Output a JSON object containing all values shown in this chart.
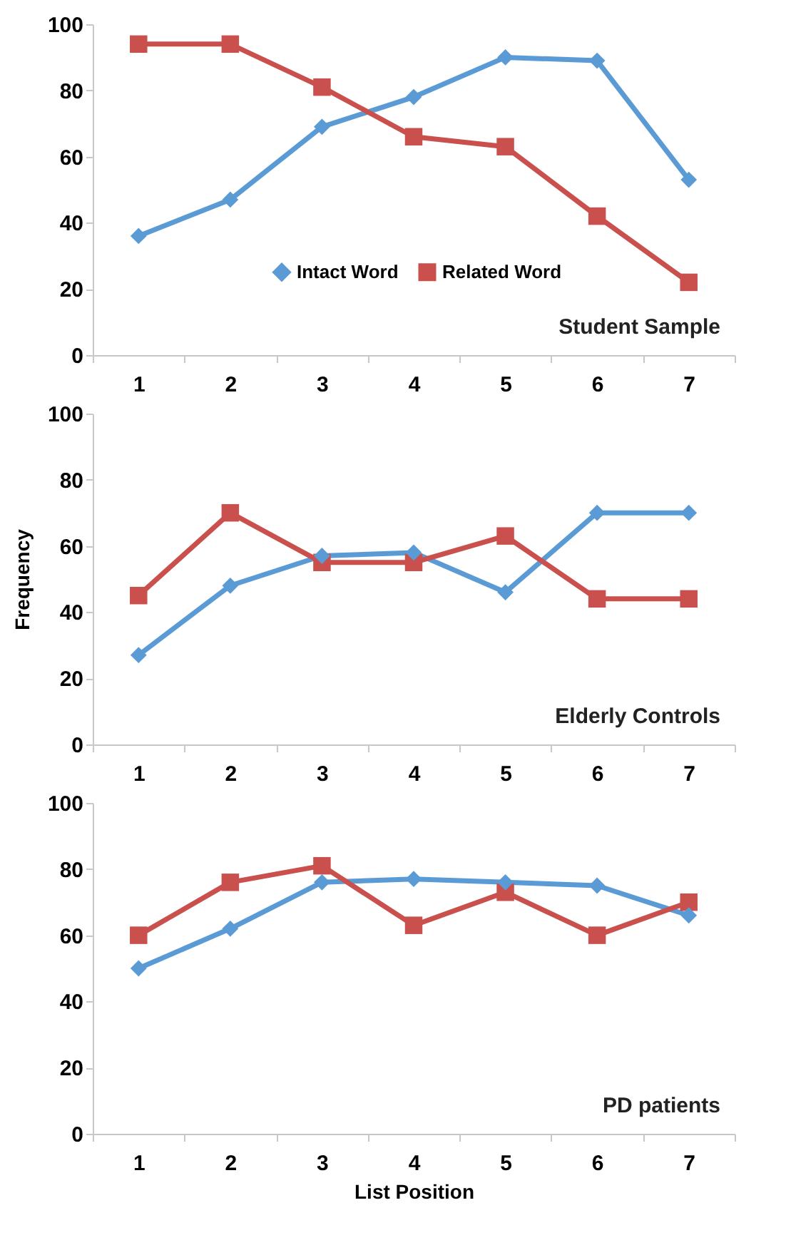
{
  "chart_data": [
    {
      "type": "line",
      "categories": [
        "1",
        "2",
        "3",
        "4",
        "5",
        "6",
        "7"
      ],
      "ylim": [
        0,
        100
      ],
      "yticks": [
        0,
        20,
        40,
        60,
        80,
        100
      ],
      "grid": false,
      "legend": "bottom",
      "annotations": [
        "Student Sample"
      ],
      "series": [
        {
          "name": "Intact Word",
          "color": "#5b9bd5",
          "marker": "diamond",
          "values": [
            36,
            47,
            69,
            78,
            90,
            89,
            53
          ]
        },
        {
          "name": "Related Word",
          "color": "#c9504d",
          "marker": "square",
          "values": [
            94,
            94,
            81,
            66,
            63,
            42,
            22
          ]
        }
      ]
    },
    {
      "type": "line",
      "categories": [
        "1",
        "2",
        "3",
        "4",
        "5",
        "6",
        "7"
      ],
      "ylim": [
        0,
        100
      ],
      "yticks": [
        0,
        20,
        40,
        60,
        80,
        100
      ],
      "grid": false,
      "ylabel": "Frequency",
      "annotations": [
        "Elderly Controls"
      ],
      "series": [
        {
          "color": "#5b9bd5",
          "marker": "diamond",
          "values": [
            27,
            48,
            57,
            58,
            46,
            70,
            70
          ]
        },
        {
          "color": "#c9504d",
          "marker": "square",
          "values": [
            45,
            70,
            55,
            55,
            63,
            44,
            44
          ]
        }
      ]
    },
    {
      "type": "line",
      "categories": [
        "1",
        "2",
        "3",
        "4",
        "5",
        "6",
        "7"
      ],
      "ylim": [
        0,
        100
      ],
      "yticks": [
        0,
        20,
        40,
        60,
        80,
        100
      ],
      "grid": false,
      "xlabel": "List Position",
      "annotations": [
        "PD patients"
      ],
      "series": [
        {
          "color": "#5b9bd5",
          "marker": "diamond",
          "values": [
            50,
            62,
            76,
            77,
            76,
            75,
            66
          ]
        },
        {
          "color": "#c9504d",
          "marker": "square",
          "values": [
            60,
            76,
            81,
            63,
            73,
            60,
            70
          ]
        }
      ]
    }
  ]
}
